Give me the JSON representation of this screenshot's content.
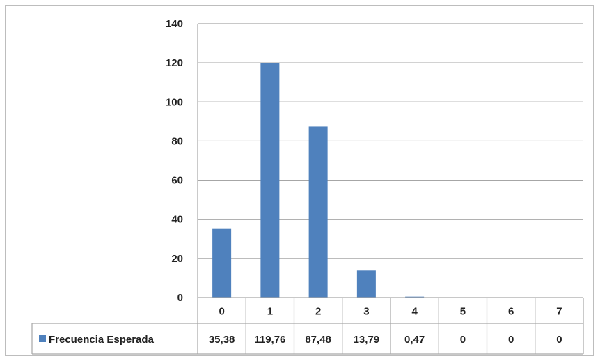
{
  "chart_data": {
    "type": "bar",
    "categories": [
      "0",
      "1",
      "2",
      "3",
      "4",
      "5",
      "6",
      "7"
    ],
    "series": [
      {
        "name": "Frecuencia Esperada",
        "values": [
          35.38,
          119.76,
          87.48,
          13.79,
          0.47,
          0,
          0,
          0
        ],
        "labels": [
          "35,38",
          "119,76",
          "87,48",
          "13,79",
          "0,47",
          "0",
          "0",
          "0"
        ],
        "color": "#4f81bd"
      }
    ],
    "ylim": [
      0,
      140
    ],
    "yticks": [
      0,
      20,
      40,
      60,
      80,
      100,
      120,
      140
    ],
    "grid": true,
    "data_table": true,
    "xlabel": "",
    "ylabel": "",
    "title": ""
  }
}
